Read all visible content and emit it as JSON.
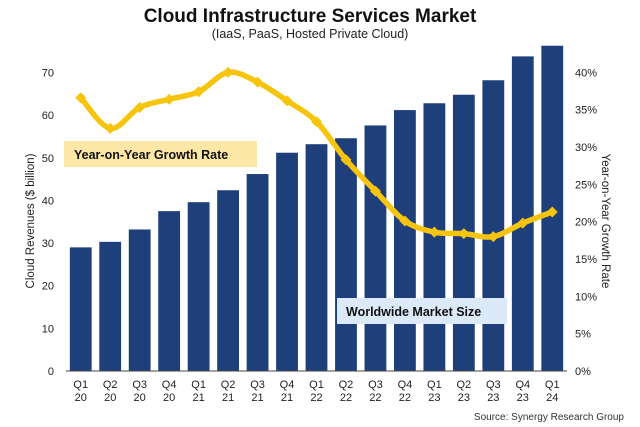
{
  "chart_data": {
    "type": "bar+line",
    "title": "Cloud Infrastructure Services Market",
    "subtitle": "(IaaS, PaaS, Hosted Private Cloud)",
    "categories": [
      [
        "Q1",
        "20"
      ],
      [
        "Q2",
        "20"
      ],
      [
        "Q3",
        "20"
      ],
      [
        "Q4",
        "20"
      ],
      [
        "Q1",
        "21"
      ],
      [
        "Q2",
        "21"
      ],
      [
        "Q3",
        "21"
      ],
      [
        "Q4",
        "21"
      ],
      [
        "Q1",
        "22"
      ],
      [
        "Q2",
        "22"
      ],
      [
        "Q3",
        "22"
      ],
      [
        "Q4",
        "22"
      ],
      [
        "Q1",
        "23"
      ],
      [
        "Q2",
        "23"
      ],
      [
        "Q3",
        "23"
      ],
      [
        "Q4",
        "23"
      ],
      [
        "Q1",
        "24"
      ]
    ],
    "series": [
      {
        "type": "bar",
        "axis": "left",
        "color": "#1f3f7a",
        "values": [
          29,
          30.3,
          33.2,
          37.5,
          39.6,
          42.4,
          46.2,
          51.2,
          53.2,
          54.6,
          57.6,
          61.2,
          62.8,
          64.8,
          68.2,
          73.8,
          76.3
        ]
      },
      {
        "type": "line",
        "axis": "right",
        "color": "#f6c40c",
        "values": [
          36.6,
          32.5,
          35.3,
          36.4,
          37.4,
          40.0,
          38.7,
          36.2,
          33.4,
          28.3,
          24.1,
          20.1,
          18.6,
          18.4,
          18.0,
          19.8,
          21.3
        ]
      }
    ],
    "ylabel": "Cloud Revenues ($ billion)",
    "ylabel_right": "Year-on-Year Growth Rate",
    "ylim": [
      0,
      76
    ],
    "ylim_right": [
      0,
      43.4
    ],
    "yticks": [
      "0",
      "10",
      "20",
      "30",
      "40",
      "50",
      "60",
      "70"
    ],
    "yticks_right": [
      "0%",
      "5%",
      "10%",
      "15%",
      "20%",
      "25%",
      "30%",
      "35%",
      "40%"
    ],
    "annotations": {
      "growth_label": "Year-on-Year  Growth Rate",
      "market_label": "Worldwide Market Size"
    },
    "source": "Source: Synergy Research Group",
    "grid": false
  }
}
